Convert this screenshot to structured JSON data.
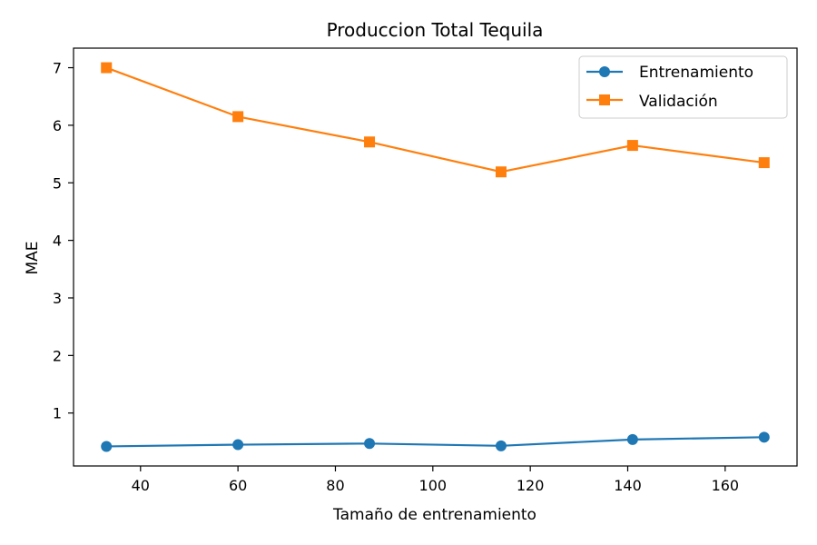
{
  "chart_data": {
    "type": "line",
    "title": "Produccion Total Tequila",
    "xlabel": "Tamaño de entrenamiento",
    "ylabel": "MAE",
    "x": [
      33,
      60,
      87,
      114,
      141,
      168
    ],
    "xlim": [
      26.25,
      174.75
    ],
    "ylim": [
      0.08,
      7.34
    ],
    "xticks": [
      40,
      60,
      80,
      100,
      120,
      140,
      160
    ],
    "yticks": [
      1,
      2,
      3,
      4,
      5,
      6,
      7
    ],
    "grid": false,
    "legend_position": "top-right",
    "series": [
      {
        "name": "Entrenamiento",
        "marker": "circle",
        "color": "#1f77b4",
        "values": [
          0.42,
          0.45,
          0.47,
          0.43,
          0.54,
          0.58
        ]
      },
      {
        "name": "Validación",
        "marker": "square",
        "color": "#ff7f0e",
        "values": [
          7.0,
          6.15,
          5.71,
          5.19,
          5.65,
          5.35
        ]
      }
    ]
  }
}
